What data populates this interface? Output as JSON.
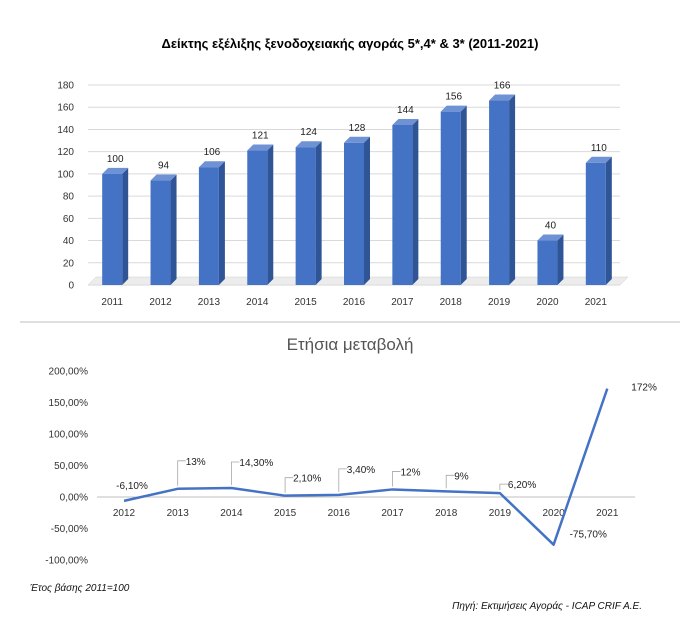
{
  "chart_data": [
    {
      "type": "bar",
      "title": "Δείκτης εξέλιξης ξενοδοχειακής αγοράς 5*,4* & 3* (2011-2021)",
      "categories": [
        "2011",
        "2012",
        "2013",
        "2014",
        "2015",
        "2016",
        "2017",
        "2018",
        "2019",
        "2020",
        "2021"
      ],
      "values": [
        100,
        94,
        106,
        121,
        124,
        128,
        144,
        156,
        166,
        40,
        110
      ],
      "data_labels": [
        "100",
        "94",
        "106",
        "121",
        "124",
        "128",
        "144",
        "156",
        "166",
        "40",
        "110"
      ],
      "ylim": [
        0,
        180
      ],
      "yticks": [
        0,
        20,
        40,
        60,
        80,
        100,
        120,
        140,
        160,
        180
      ],
      "grid": true,
      "bar_color": "#4472C4"
    },
    {
      "type": "line",
      "title": "Ετήσια μεταβολή",
      "categories": [
        "2012",
        "2013",
        "2014",
        "2015",
        "2016",
        "2017",
        "2018",
        "2019",
        "2020",
        "2021"
      ],
      "values": [
        -6.1,
        13,
        14.3,
        2.1,
        3.4,
        12,
        9,
        6.2,
        -75.7,
        172
      ],
      "data_labels": [
        "-6,10%",
        "13%",
        "14,30%",
        "2,10%",
        "3,40%",
        "12%",
        "9%",
        "6,20%",
        "-75,70%",
        "172%"
      ],
      "ylim": [
        -100,
        200
      ],
      "ytick_labels": [
        "-100,00%",
        "-50,00%",
        "0,00%",
        "50,00%",
        "100,00%",
        "150,00%",
        "200,00%"
      ],
      "grid": false,
      "line_color": "#4472C4"
    }
  ],
  "footnotes": {
    "base_year": "Έτος βάσης 2011=100",
    "source": "Πηγή: Εκτιμήσεις Αγοράς - ICAP CRIF A.E."
  }
}
